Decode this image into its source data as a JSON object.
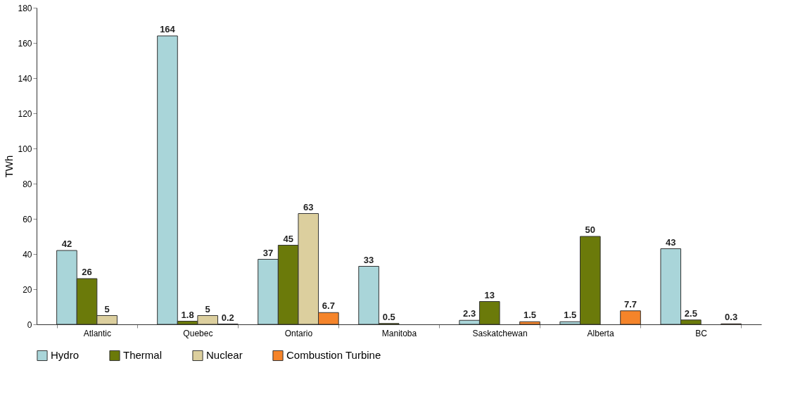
{
  "chart_data": {
    "type": "bar",
    "ylabel": "TWh",
    "categories": [
      "Atlantic",
      "Quebec",
      "Ontario",
      "Manitoba",
      "Saskatchewan",
      "Alberta",
      "BC"
    ],
    "series": [
      {
        "name": "Hydro",
        "color": "#a9d5d9",
        "values": [
          42,
          164,
          37,
          33,
          2.3,
          1.5,
          43
        ]
      },
      {
        "name": "Thermal",
        "color": "#6b7a0a",
        "values": [
          26,
          1.8,
          45,
          0.5,
          13,
          50,
          2.5
        ]
      },
      {
        "name": "Nuclear",
        "color": "#dccf9e",
        "values": [
          5,
          5,
          63,
          null,
          null,
          null,
          null
        ]
      },
      {
        "name": "Combustion Turbine",
        "color": "#f5842a",
        "values": [
          null,
          0.2,
          6.7,
          null,
          1.5,
          7.7,
          0.3
        ]
      }
    ],
    "ylim": [
      0,
      180
    ],
    "yticks": [
      0,
      20,
      40,
      60,
      80,
      100,
      120,
      140,
      160,
      180
    ],
    "grid": false,
    "legend": "bottom left",
    "data_labels": true
  }
}
